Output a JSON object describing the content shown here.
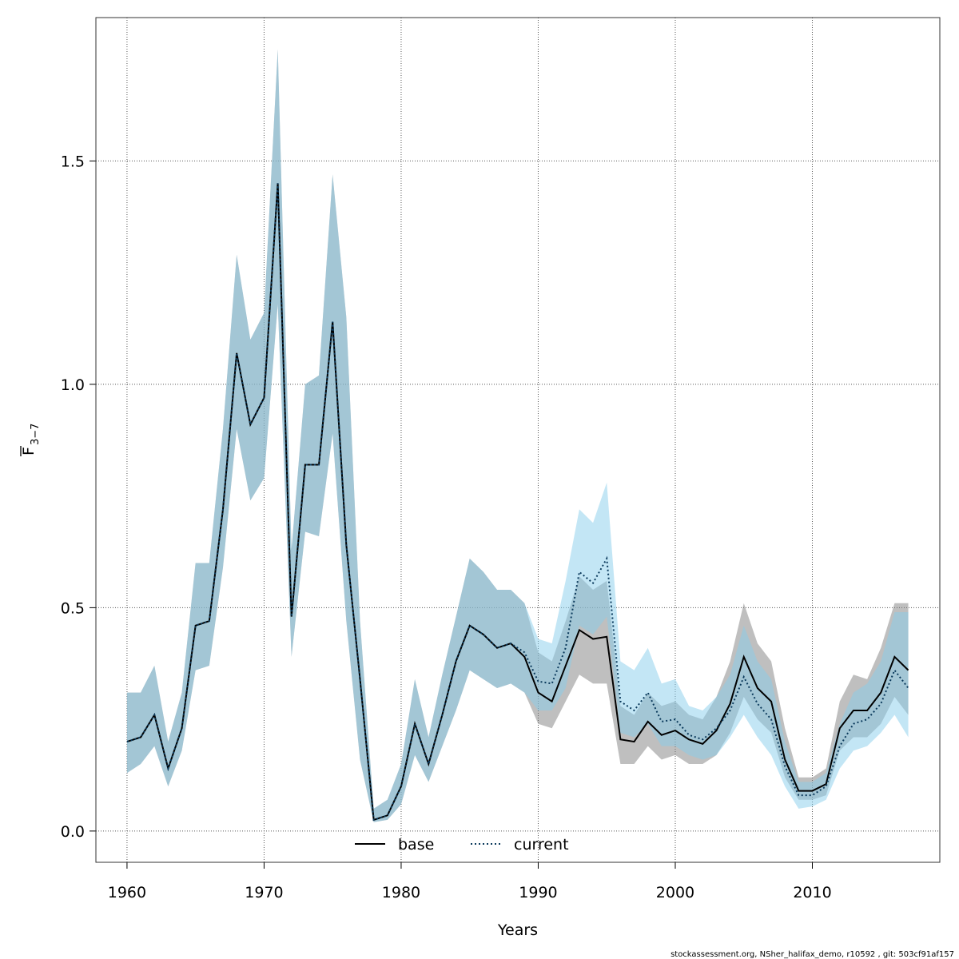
{
  "chart_data": {
    "type": "line-band",
    "x_label": "Years",
    "y_label": "F",
    "y_label_subscript": "3−7",
    "footer": "stockassessment.org, NSher_halifax_demo, r10592 , git: 503cf91af157",
    "x": [
      1960,
      1961,
      1962,
      1963,
      1964,
      1965,
      1966,
      1967,
      1968,
      1969,
      1970,
      1971,
      1972,
      1973,
      1974,
      1975,
      1976,
      1977,
      1978,
      1979,
      1980,
      1981,
      1982,
      1983,
      1984,
      1985,
      1986,
      1987,
      1988,
      1989,
      1990,
      1991,
      1992,
      1993,
      1994,
      1995,
      1996,
      1997,
      1998,
      1999,
      2000,
      2001,
      2002,
      2003,
      2004,
      2005,
      2006,
      2007,
      2008,
      2009,
      2010,
      2011,
      2012,
      2013,
      2014,
      2015,
      2016,
      2017
    ],
    "xlim": [
      1957.73,
      2019.3
    ],
    "xticks": [
      1960,
      1970,
      1980,
      1990,
      2000,
      2010
    ],
    "ylim": [
      -0.07,
      1.821
    ],
    "yticks": [
      {
        "value": 0,
        "label": "0.0"
      },
      0.5,
      {
        "value": 1,
        "label": "1.0"
      },
      1.5
    ],
    "grid": true,
    "legend": "bottom",
    "series": [
      {
        "name": "base",
        "color": "#000000",
        "band_color": "rgba(128,128,128,0.5)",
        "dash": "solid",
        "values": [
          0.2,
          0.21,
          0.26,
          0.14,
          0.23,
          0.46,
          0.47,
          0.72,
          1.07,
          0.91,
          0.97,
          1.45,
          0.48,
          0.82,
          0.82,
          1.14,
          0.64,
          0.34,
          0.025,
          0.035,
          0.1,
          0.24,
          0.15,
          0.26,
          0.38,
          0.46,
          0.44,
          0.41,
          0.42,
          0.39,
          0.31,
          0.29,
          0.37,
          0.45,
          0.43,
          0.435,
          0.205,
          0.2,
          0.245,
          0.215,
          0.225,
          0.205,
          0.195,
          0.225,
          0.285,
          0.39,
          0.32,
          0.29,
          0.16,
          0.09,
          0.09,
          0.105,
          0.23,
          0.27,
          0.27,
          0.31,
          0.39,
          0.36
        ],
        "lower": [
          0.13,
          0.15,
          0.19,
          0.1,
          0.18,
          0.36,
          0.37,
          0.59,
          0.9,
          0.74,
          0.79,
          1.18,
          0.39,
          0.67,
          0.66,
          0.89,
          0.47,
          0.16,
          0.02,
          0.025,
          0.06,
          0.17,
          0.11,
          0.19,
          0.27,
          0.36,
          0.34,
          0.32,
          0.33,
          0.31,
          0.24,
          0.23,
          0.29,
          0.35,
          0.33,
          0.33,
          0.15,
          0.15,
          0.19,
          0.16,
          0.17,
          0.15,
          0.15,
          0.17,
          0.22,
          0.3,
          0.25,
          0.22,
          0.12,
          0.07,
          0.07,
          0.08,
          0.18,
          0.21,
          0.21,
          0.24,
          0.3,
          0.26
        ],
        "upper": [
          0.31,
          0.31,
          0.37,
          0.2,
          0.31,
          0.6,
          0.6,
          0.9,
          1.29,
          1.1,
          1.16,
          1.75,
          0.63,
          1.0,
          1.02,
          1.47,
          1.15,
          0.47,
          0.05,
          0.07,
          0.15,
          0.34,
          0.21,
          0.35,
          0.48,
          0.61,
          0.58,
          0.54,
          0.54,
          0.51,
          0.4,
          0.38,
          0.47,
          0.57,
          0.54,
          0.56,
          0.28,
          0.26,
          0.31,
          0.28,
          0.29,
          0.26,
          0.25,
          0.3,
          0.38,
          0.51,
          0.42,
          0.38,
          0.23,
          0.12,
          0.12,
          0.14,
          0.29,
          0.35,
          0.34,
          0.41,
          0.51,
          0.51
        ]
      },
      {
        "name": "current",
        "color": "#0b3a5c",
        "band_color": "rgba(135,206,235,0.5)",
        "dash": "dotted",
        "values": [
          0.2,
          0.21,
          0.26,
          0.14,
          0.23,
          0.46,
          0.47,
          0.72,
          1.07,
          0.91,
          0.97,
          1.45,
          0.48,
          0.82,
          0.82,
          1.14,
          0.64,
          0.34,
          0.025,
          0.035,
          0.1,
          0.24,
          0.15,
          0.26,
          0.38,
          0.46,
          0.44,
          0.41,
          0.42,
          0.4,
          0.335,
          0.33,
          0.41,
          0.58,
          0.555,
          0.61,
          0.29,
          0.27,
          0.31,
          0.245,
          0.25,
          0.215,
          0.205,
          0.23,
          0.27,
          0.345,
          0.285,
          0.25,
          0.145,
          0.08,
          0.08,
          0.1,
          0.19,
          0.24,
          0.25,
          0.285,
          0.36,
          0.32
        ],
        "lower": [
          0.13,
          0.15,
          0.19,
          0.1,
          0.18,
          0.36,
          0.37,
          0.59,
          0.9,
          0.74,
          0.79,
          1.18,
          0.39,
          0.67,
          0.66,
          0.89,
          0.47,
          0.16,
          0.02,
          0.025,
          0.06,
          0.17,
          0.11,
          0.19,
          0.27,
          0.36,
          0.34,
          0.32,
          0.33,
          0.31,
          0.27,
          0.27,
          0.32,
          0.46,
          0.44,
          0.48,
          0.22,
          0.21,
          0.24,
          0.19,
          0.19,
          0.17,
          0.16,
          0.17,
          0.21,
          0.26,
          0.21,
          0.17,
          0.1,
          0.05,
          0.055,
          0.07,
          0.14,
          0.18,
          0.19,
          0.22,
          0.26,
          0.21
        ],
        "upper": [
          0.31,
          0.31,
          0.37,
          0.2,
          0.31,
          0.6,
          0.6,
          0.9,
          1.29,
          1.1,
          1.16,
          1.75,
          0.63,
          1.0,
          1.02,
          1.47,
          1.15,
          0.47,
          0.05,
          0.07,
          0.15,
          0.34,
          0.21,
          0.35,
          0.48,
          0.61,
          0.58,
          0.54,
          0.54,
          0.51,
          0.43,
          0.42,
          0.56,
          0.72,
          0.69,
          0.78,
          0.38,
          0.36,
          0.41,
          0.33,
          0.34,
          0.28,
          0.27,
          0.3,
          0.35,
          0.46,
          0.38,
          0.34,
          0.2,
          0.11,
          0.11,
          0.13,
          0.24,
          0.31,
          0.33,
          0.38,
          0.49,
          0.49
        ]
      }
    ]
  }
}
